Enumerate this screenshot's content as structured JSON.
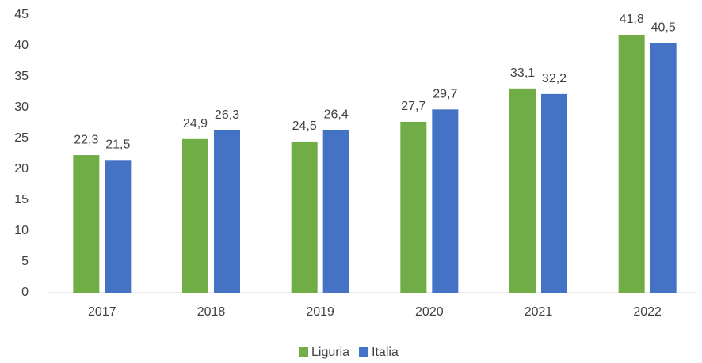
{
  "chart_data": {
    "type": "bar",
    "categories": [
      "2017",
      "2018",
      "2019",
      "2020",
      "2021",
      "2022"
    ],
    "series": [
      {
        "name": "Liguria",
        "color": "#70ad47",
        "values": [
          22.3,
          24.9,
          24.5,
          27.7,
          33.1,
          41.8
        ],
        "value_labels": [
          "22,3",
          "24,9",
          "24,5",
          "27,7",
          "33,1",
          "41,8"
        ]
      },
      {
        "name": "Italia",
        "color": "#4472c4",
        "values": [
          21.5,
          26.3,
          26.4,
          29.7,
          32.2,
          40.5
        ],
        "value_labels": [
          "21,5",
          "26,3",
          "26,4",
          "29,7",
          "32,2",
          "40,5"
        ]
      }
    ],
    "ylim": [
      0,
      45
    ],
    "yticks": [
      0,
      5,
      10,
      15,
      20,
      25,
      30,
      35,
      40,
      45
    ],
    "grid": false,
    "legend": "bottom"
  }
}
